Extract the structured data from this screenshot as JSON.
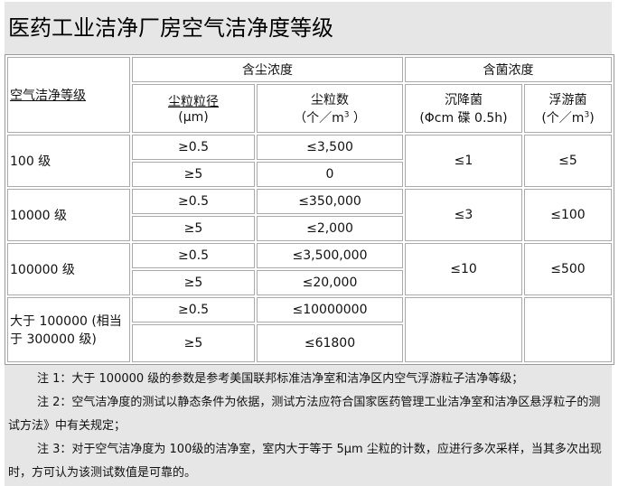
{
  "title": "医药工业洁净厂房空气洁净度等级",
  "headers": {
    "grade": "空气洁净等级",
    "dust": "含尘浓度",
    "bacteria": "含菌浓度",
    "size": "尘粒粒径",
    "size_unit": "(μm)",
    "count": "尘粒数",
    "count_unit": "（个／m",
    "settle": "沉降菌",
    "settle_unit": "(Φcm 碟 0.5h)",
    "float": "浮游菌",
    "float_unit": "(个／m"
  },
  "rows": [
    {
      "grade": "100 级",
      "a": [
        "≥0.5",
        "≤3,500"
      ],
      "b": [
        "≥5",
        "0"
      ],
      "settle": "≤1",
      "float": "≤5"
    },
    {
      "grade": "10000 级",
      "a": [
        "≥0.5",
        "≤350,000"
      ],
      "b": [
        "≥5",
        "≤2,000"
      ],
      "settle": "≤3",
      "float": "≤100"
    },
    {
      "grade": "100000 级",
      "a": [
        "≥0.5",
        "≤3,500,000"
      ],
      "b": [
        "≥5",
        "≤20,000"
      ],
      "settle": "≤10",
      "float": "≤500"
    },
    {
      "grade": "大于 100000 (相当于 300000 级)",
      "a": [
        "≥0.5",
        "≤10000000"
      ],
      "b": [
        "≥5",
        "≤61800"
      ],
      "settle": "",
      "float": ""
    }
  ],
  "notes": [
    "注 1：大于 100000 级的参数是参考美国联邦标准洁净室和洁净区内空气浮游粒子洁净等级；",
    "注 2：空气洁净度的测试以静态条件为依据，测试方法应符合国家医药管理工业洁净室和洁净区悬浮粒子的测试方法》中有关规定；",
    "注 3：对于空气洁净度为 100级的洁净室，室内大于等于 5μm 尘粒的计数，应进行多次采样，当其多次出现时，方可认为该测试数值是可靠的。"
  ]
}
